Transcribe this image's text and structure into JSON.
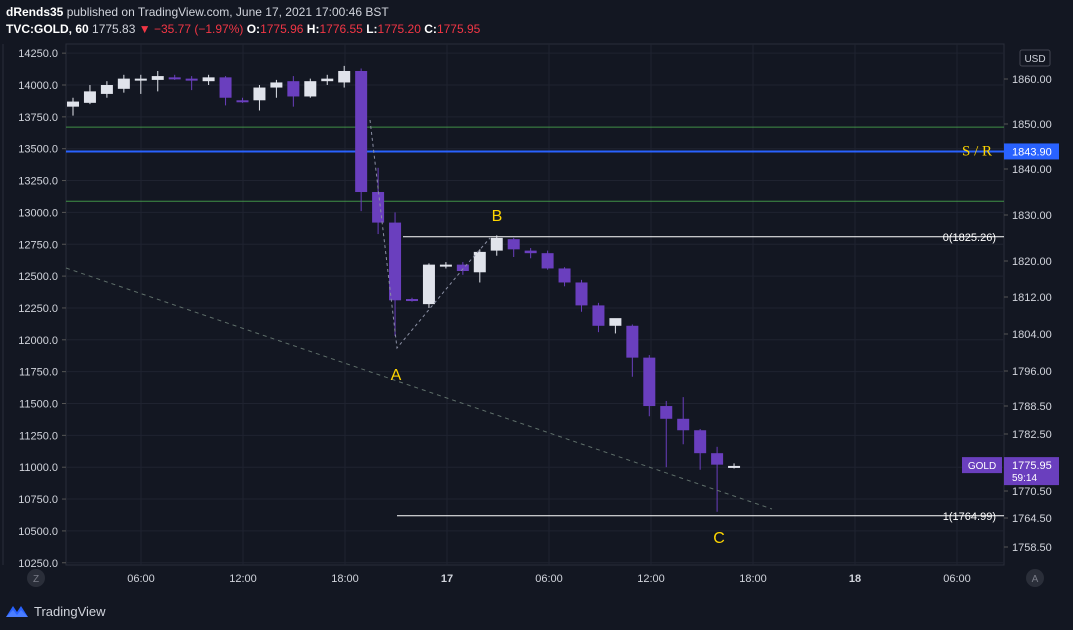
{
  "header": {
    "author": "dRends35",
    "published_text": "published on TradingView.com, June 17, 2021 17:00:46 BST",
    "symbol": "TVC:GOLD, 60",
    "last": "1775.83",
    "change": "▼ −35.77 (−1.97%)",
    "o_label": "O:",
    "o_val": "1775.96",
    "h_label": "H:",
    "h_val": "1776.55",
    "l_label": "L:",
    "l_val": "1775.20",
    "c_label": "C:",
    "c_val": "1775.95"
  },
  "footer": {
    "brand": "TradingView"
  },
  "colors": {
    "background": "#131722",
    "bear": "#6a3fbe",
    "bull": "#e0e3eb",
    "sr_line": "#2962ff",
    "zone_line": "#4caf50",
    "annotation": "#ffd600"
  },
  "chart_data": {
    "type": "candlestick",
    "currency": "USD",
    "y_right": {
      "ticks": [
        "1860.00",
        "1850.00",
        "1840.00",
        "1830.00",
        "1820.00",
        "1812.00",
        "1804.00",
        "1796.00",
        "1788.50",
        "1782.50",
        "1770.50",
        "1764.50",
        "1758.50"
      ],
      "range": [
        1755,
        1862
      ]
    },
    "y_left": {
      "ticks": [
        "14250.0",
        "14000.0",
        "13750.0",
        "13500.0",
        "13250.0",
        "13000.0",
        "12750.0",
        "12500.0",
        "12250.0",
        "12000.0",
        "11750.0",
        "11500.0",
        "11250.0",
        "11000.0",
        "10750.0",
        "10500.0",
        "10250.0"
      ]
    },
    "x_ticks": [
      "06:00",
      "12:00",
      "18:00",
      "17",
      "06:00",
      "12:00",
      "18:00",
      "18",
      "06:00"
    ],
    "x_unit": "hourly bars (index 0 = 02:00 June 16)",
    "candles": [
      {
        "t": 0,
        "o": 13830,
        "h": 13900,
        "l": 13760,
        "c": 13870
      },
      {
        "t": 1,
        "o": 13860,
        "h": 14000,
        "l": 13850,
        "c": 13950
      },
      {
        "t": 2,
        "o": 13930,
        "h": 14030,
        "l": 13900,
        "c": 14000
      },
      {
        "t": 3,
        "o": 13970,
        "h": 14080,
        "l": 13940,
        "c": 14050
      },
      {
        "t": 4,
        "o": 14040,
        "h": 14080,
        "l": 13930,
        "c": 14050
      },
      {
        "t": 5,
        "o": 14040,
        "h": 14110,
        "l": 13950,
        "c": 14070
      },
      {
        "t": 6,
        "o": 14060,
        "h": 14080,
        "l": 14040,
        "c": 14050
      },
      {
        "t": 7,
        "o": 14050,
        "h": 14070,
        "l": 13960,
        "c": 14040
      },
      {
        "t": 8,
        "o": 14030,
        "h": 14080,
        "l": 14000,
        "c": 14060
      },
      {
        "t": 9,
        "o": 14060,
        "h": 14070,
        "l": 13840,
        "c": 13900
      },
      {
        "t": 10,
        "o": 13880,
        "h": 13900,
        "l": 13860,
        "c": 13870
      },
      {
        "t": 11,
        "o": 13880,
        "h": 14000,
        "l": 13800,
        "c": 13980
      },
      {
        "t": 12,
        "o": 13980,
        "h": 14040,
        "l": 13900,
        "c": 14020
      },
      {
        "t": 13,
        "o": 14030,
        "h": 14070,
        "l": 13830,
        "c": 13910
      },
      {
        "t": 14,
        "o": 13910,
        "h": 14050,
        "l": 13900,
        "c": 14030
      },
      {
        "t": 15,
        "o": 14030,
        "h": 14080,
        "l": 14000,
        "c": 14050
      },
      {
        "t": 16,
        "o": 14020,
        "h": 14150,
        "l": 13980,
        "c": 14110
      },
      {
        "t": 17,
        "o": 14110,
        "h": 14130,
        "l": 13010,
        "c": 13160
      },
      {
        "t": 18,
        "o": 13160,
        "h": 13350,
        "l": 12830,
        "c": 12920
      },
      {
        "t": 19,
        "o": 12920,
        "h": 13000,
        "l": 12030,
        "c": 12310
      },
      {
        "t": 20,
        "o": 12320,
        "h": 12330,
        "l": 12300,
        "c": 12310
      },
      {
        "t": 21,
        "o": 12280,
        "h": 12600,
        "l": 12250,
        "c": 12590
      },
      {
        "t": 22,
        "o": 12580,
        "h": 12610,
        "l": 12560,
        "c": 12590
      },
      {
        "t": 23,
        "o": 12590,
        "h": 12610,
        "l": 12510,
        "c": 12540
      },
      {
        "t": 24,
        "o": 12530,
        "h": 12710,
        "l": 12450,
        "c": 12690
      },
      {
        "t": 25,
        "o": 12700,
        "h": 12820,
        "l": 12660,
        "c": 12800
      },
      {
        "t": 26,
        "o": 12790,
        "h": 12800,
        "l": 12650,
        "c": 12710
      },
      {
        "t": 27,
        "o": 12700,
        "h": 12720,
        "l": 12640,
        "c": 12680
      },
      {
        "t": 28,
        "o": 12680,
        "h": 12700,
        "l": 12550,
        "c": 12560
      },
      {
        "t": 29,
        "o": 12560,
        "h": 12570,
        "l": 12420,
        "c": 12450
      },
      {
        "t": 30,
        "o": 12450,
        "h": 12470,
        "l": 12220,
        "c": 12270
      },
      {
        "t": 31,
        "o": 12270,
        "h": 12290,
        "l": 12060,
        "c": 12110
      },
      {
        "t": 32,
        "o": 12110,
        "h": 12160,
        "l": 12050,
        "c": 12170
      },
      {
        "t": 33,
        "o": 12110,
        "h": 12120,
        "l": 11710,
        "c": 11860
      },
      {
        "t": 34,
        "o": 11860,
        "h": 11880,
        "l": 11400,
        "c": 11480
      },
      {
        "t": 35,
        "o": 11480,
        "h": 11520,
        "l": 11000,
        "c": 11380
      },
      {
        "t": 36,
        "o": 11380,
        "h": 11550,
        "l": 11180,
        "c": 11290
      },
      {
        "t": 37,
        "o": 11290,
        "h": 11300,
        "l": 10980,
        "c": 11110
      },
      {
        "t": 38,
        "o": 11110,
        "h": 11160,
        "l": 10650,
        "c": 11020
      },
      {
        "t": 39,
        "o": 11010,
        "h": 11030,
        "l": 10990,
        "c": 11010
      }
    ],
    "price_levels": [
      {
        "name": "S / R",
        "value_label": "1843.90",
        "value": 1843.9
      },
      {
        "name": "zone_top",
        "value": 1849.3
      },
      {
        "name": "zone_bottom",
        "value": 1833.0
      }
    ],
    "fib_levels": [
      {
        "label": "0(1825.26)",
        "value": 1825.26
      },
      {
        "label": "1(1764.99)",
        "value": 1764.99
      }
    ],
    "annotations": [
      "A",
      "B",
      "C"
    ],
    "last_price": {
      "label": "GOLD",
      "value": "1775.95",
      "countdown": "59:14"
    }
  }
}
